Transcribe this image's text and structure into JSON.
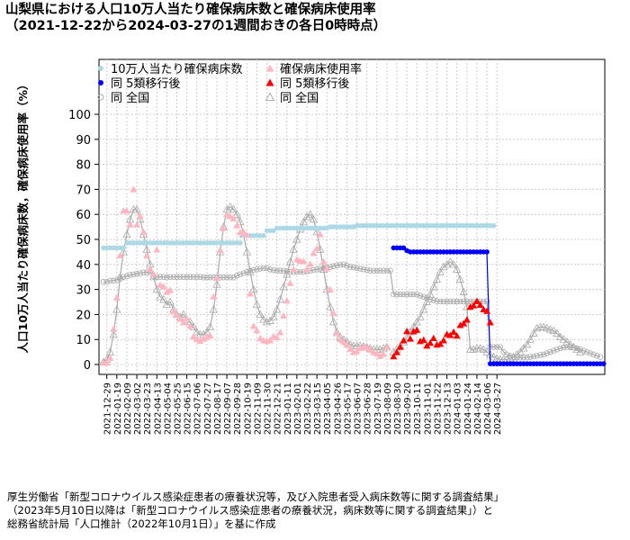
{
  "header": {
    "title": "山梨県における人口10万人当たり確保病床数と確保病床使用率",
    "subtitle": "（2021-12-22から2024-03-27の1週間おきの各日0時時点）"
  },
  "source": {
    "line1": "厚生労働省「新型コロナウイルス感染症患者の療養状況等，及び入院患者受入病床数等に関する調査結果」",
    "line2": "（2023年5月10日以降は「新型コロナウイルス感染症患者の療養状況，病床数等に関する調査結果」）と",
    "line3": "総務省統計局「人口推計（2022年10月1日）」を基に作成"
  },
  "chart_data": {
    "type": "scatter",
    "ylabel": "人口10万人当たり確保病床数，確保病床使用率（%）",
    "ylim": [
      0,
      100
    ],
    "yticks": [
      0,
      10,
      20,
      30,
      40,
      50,
      60,
      70,
      80,
      90,
      100
    ],
    "grid": true,
    "legend_position": "top-left",
    "x_start": "2021-12-22",
    "x_step_days": 7,
    "xtick_labels": [
      "2021-12-29",
      "2022-01-19",
      "2022-02-09",
      "2022-03-02",
      "2022-03-23",
      "2022-04-13",
      "2022-05-04",
      "2022-05-25",
      "2022-06-15",
      "2022-07-06",
      "2022-07-27",
      "2022-08-17",
      "2022-09-07",
      "2022-09-28",
      "2022-10-19",
      "2022-11-09",
      "2022-11-30",
      "2022-12-21",
      "2023-01-11",
      "2023-02-01",
      "2023-02-22",
      "2023-03-15",
      "2023-04-05",
      "2023-04-26",
      "2023-05-17",
      "2023-06-07",
      "2023-06-28",
      "2023-07-19",
      "2023-08-09",
      "2023-08-30",
      "2023-09-20",
      "2023-10-11",
      "2023-11-01",
      "2023-11-22",
      "2023-12-13",
      "2024-01-03",
      "2024-01-24",
      "2024-02-14",
      "2024-03-06",
      "2024-03-27"
    ],
    "legend": {
      "beds": "10万人当たり確保病床数",
      "usage": "確保病床使用率",
      "beds_post": "同 5類移行後",
      "usage_post": "同 5類移行後",
      "beds_national": "同 全国",
      "usage_national": "同 全国"
    },
    "colors": {
      "beds": "#add8e6",
      "usage": "#ffb6c1",
      "beds_post": "#0000ff",
      "usage_post": "#ff0000",
      "national": "#aaaaaa"
    },
    "series": {
      "beds": [
        46.6,
        46.6,
        46.6,
        46.6,
        46.6,
        46.6,
        46.6,
        48.6,
        48.6,
        48.6,
        48.6,
        48.6,
        48.6,
        48.6,
        48.6,
        48.6,
        48.6,
        48.6,
        48.6,
        48.6,
        48.6,
        48.6,
        48.6,
        48.6,
        48.6,
        48.6,
        48.6,
        48.6,
        48.6,
        48.6,
        48.6,
        48.6,
        48.6,
        48.6,
        48.6,
        48.6,
        48.6,
        48.6,
        48.6,
        48.6,
        48.6,
        48.6,
        51.5,
        51.5,
        51.5,
        51.5,
        51.5,
        51.5,
        51.5,
        53.5,
        53.5,
        53.5,
        54.5,
        54.5,
        54.5,
        54.5,
        54.5,
        54.5,
        54.5,
        54.5,
        54.5,
        54.5,
        54.5,
        54.5,
        54.5,
        54.5,
        54.5,
        54.5,
        55.0,
        55.0,
        55.0,
        55.0,
        55.0,
        55.0,
        55.0,
        55.0,
        55.5,
        55.5,
        55.5,
        55.5,
        55.5,
        55.5,
        55.5,
        55.5,
        55.5,
        55.5,
        55.5,
        55.5,
        55.5,
        55.5,
        55.5,
        55.5,
        55.5,
        55.5,
        55.5,
        55.5,
        55.5,
        55.5,
        55.5,
        55.5,
        55.5,
        55.5,
        55.5,
        55.5,
        55.5,
        55.5,
        55.5,
        55.5,
        55.5,
        55.5,
        55.5,
        55.5,
        55.5,
        55.5,
        55.5,
        55.5,
        55.5,
        55.5
      ],
      "usage": [
        0.7,
        0.7,
        2.6,
        14.2,
        26.7,
        43.6,
        61.5,
        61.5,
        55.9,
        70.0,
        55.9,
        59.4,
        53.0,
        43.6,
        38.2,
        36.2,
        45.9,
        31.8,
        31.2,
        29.0,
        29.7,
        21.4,
        19.9,
        18.2,
        16.8,
        18.4,
        15.4,
        11.2,
        10.1,
        9.4,
        10.3,
        11.0,
        11.6,
        27.1,
        34.5,
        45.7,
        54.5,
        60.0,
        59.3,
        58.3,
        55.6,
        52.8,
        53.0,
        51.8,
        28.3,
        15.4,
        13.6,
        10.5,
        9.6,
        9.3,
        9.7,
        11.3,
        10.8,
        12.9,
        19.5,
        25.5,
        32.5,
        38.0,
        42.0,
        41.4,
        41.3,
        38.1,
        40.2,
        44.5,
        46.5,
        52.0,
        41.1,
        38.4,
        30.0,
        20.5,
        12.5,
        10.1,
        9.0,
        7.9,
        6.2,
        4.9,
        5.3,
        6.5,
        7.1,
        6.8,
        5.9,
        4.9,
        4.4,
        3.4,
        4.2,
        6.9,
        null,
        null,
        null,
        null,
        null,
        null,
        null,
        null,
        null,
        null,
        null,
        null,
        null,
        null,
        null,
        null,
        null,
        null,
        null,
        null,
        null,
        null,
        null,
        null,
        null,
        null,
        null,
        null,
        null,
        null,
        null,
        null,
        null,
        null,
        null,
        null,
        null
      ],
      "beds_post": [
        null,
        null,
        null,
        null,
        null,
        null,
        null,
        null,
        null,
        null,
        null,
        null,
        null,
        null,
        null,
        null,
        null,
        null,
        null,
        null,
        null,
        null,
        null,
        null,
        null,
        null,
        null,
        null,
        null,
        null,
        null,
        null,
        null,
        null,
        null,
        null,
        null,
        null,
        null,
        null,
        null,
        null,
        null,
        null,
        null,
        null,
        null,
        null,
        null,
        null,
        null,
        null,
        null,
        null,
        null,
        null,
        null,
        null,
        null,
        null,
        null,
        null,
        null,
        null,
        null,
        null,
        null,
        null,
        null,
        null,
        null,
        null,
        null,
        null,
        null,
        null,
        null,
        null,
        null,
        null,
        null,
        null,
        null,
        null,
        null,
        null,
        null,
        46.6,
        46.6,
        46.6,
        46.6,
        45.5,
        45.0,
        45.0,
        45.0,
        45.0,
        45.0,
        45.0,
        45.0,
        45.0,
        45.0,
        45.0,
        45.0,
        45.0,
        45.0,
        45.0,
        45.0,
        45.0,
        45.0,
        45.0,
        45.0,
        45.0,
        45.0,
        45.0,
        45.0,
        45.0,
        0.3,
        0.3,
        0.3,
        0.3,
        0.3,
        0.3,
        0.3,
        0.3,
        0.3,
        0.3,
        0.3,
        0.3,
        0.3,
        0.3,
        0.3,
        0.3,
        0.3,
        0.3,
        0.3,
        0.3,
        0.3,
        0.3,
        0.3,
        0.3,
        0.3,
        0.3,
        0.3,
        0.3,
        0.3,
        0.3,
        0.3,
        0.3,
        0.3,
        0.3,
        0.3
      ],
      "usage_post": [
        null,
        null,
        null,
        null,
        null,
        null,
        null,
        null,
        null,
        null,
        null,
        null,
        null,
        null,
        null,
        null,
        null,
        null,
        null,
        null,
        null,
        null,
        null,
        null,
        null,
        null,
        null,
        null,
        null,
        null,
        null,
        null,
        null,
        null,
        null,
        null,
        null,
        null,
        null,
        null,
        null,
        null,
        null,
        null,
        null,
        null,
        null,
        null,
        null,
        null,
        null,
        null,
        null,
        null,
        null,
        null,
        null,
        null,
        null,
        null,
        null,
        null,
        null,
        null,
        null,
        null,
        null,
        null,
        null,
        null,
        null,
        null,
        null,
        null,
        null,
        null,
        null,
        null,
        null,
        null,
        null,
        null,
        null,
        null,
        null,
        null,
        null,
        3.2,
        4.9,
        7.0,
        9.6,
        13.3,
        10.3,
        13.2,
        13.8,
        9.3,
        9.8,
        7.5,
        8.6,
        10.5,
        7.9,
        8.2,
        9.6,
        12.1,
        11.7,
        13.0,
        11.5,
        15.7,
        16.4,
        17.9,
        23.0,
        23.6,
        25.3,
        23.8,
        22.0,
        21.4,
        16.8
      ],
      "beds_national": [
        33.0,
        33.0,
        33.5,
        33.5,
        33.8,
        34.3,
        35.0,
        35.3,
        35.8,
        36.0,
        36.3,
        36.5,
        36.8,
        36.8,
        37.0,
        35.3,
        35.0,
        35.0,
        35.0,
        34.8,
        35.0,
        35.0,
        35.0,
        35.0,
        35.0,
        35.0,
        35.0,
        35.0,
        35.0,
        35.0,
        34.8,
        34.8,
        34.8,
        34.8,
        34.8,
        34.8,
        34.8,
        34.8,
        34.8,
        34.8,
        35.5,
        36.0,
        36.5,
        37.0,
        37.5,
        37.8,
        38.0,
        38.3,
        38.5,
        38.5,
        38.0,
        37.7,
        37.5,
        37.5,
        37.5,
        37.3,
        37.0,
        37.0,
        37.0,
        37.0,
        37.0,
        37.2,
        37.5,
        37.8,
        38.0,
        38.3,
        38.5,
        38.8,
        39.0,
        39.3,
        39.6,
        39.8,
        40.0,
        39.5,
        39.0,
        38.8,
        38.5,
        38.3,
        38.0,
        37.8,
        37.5,
        37.5,
        37.5,
        37.5,
        37.5,
        37.5,
        37.5,
        28.0,
        28.0,
        28.0,
        28.0,
        28.0,
        28.0,
        28.0,
        28.0,
        27.5,
        27.0,
        26.5,
        26.0,
        25.7,
        25.3,
        25.2,
        25.2,
        25.2,
        25.2,
        25.2,
        25.2,
        25.2,
        25.2,
        25.2,
        25.2,
        25.2,
        25.2,
        25.2,
        25.2,
        25.2,
        7.0,
        7.0,
        7.0,
        7.0,
        5.0,
        4.0,
        3.5,
        3.0,
        2.8,
        2.8,
        2.8,
        2.8,
        3.0,
        3.2,
        3.5,
        3.8,
        4.0,
        4.5,
        5.0,
        5.5,
        6.0,
        6.5,
        6.8,
        7.0,
        7.0,
        6.8,
        6.5,
        6.0,
        5.5,
        5.0,
        4.5,
        4.0,
        3.5,
        3.0
      ],
      "usage_national": [
        1.0,
        2.0,
        5.0,
        12.0,
        22.0,
        35.0,
        45.0,
        52.0,
        58.0,
        62.0,
        62.0,
        58.0,
        52.0,
        46.0,
        40.0,
        35.0,
        30.0,
        27.0,
        26.0,
        24.0,
        25.0,
        22.0,
        20.0,
        19.0,
        20.0,
        18.0,
        17.0,
        15.0,
        13.0,
        12.0,
        12.0,
        13.0,
        15.0,
        22.0,
        32.0,
        45.0,
        55.0,
        62.0,
        63.0,
        62.0,
        60.0,
        57.0,
        52.0,
        45.0,
        37.0,
        30.0,
        24.0,
        20.0,
        18.0,
        17.0,
        17.5,
        19.0,
        22.0,
        26.0,
        31.0,
        36.0,
        41.0,
        46.0,
        50.0,
        54.0,
        57.0,
        59.0,
        60.0,
        58.0,
        53.0,
        46.0,
        38.0,
        30.0,
        23.0,
        17.0,
        13.0,
        11.0,
        10.0,
        9.0,
        8.0,
        7.5,
        7.5,
        7.5,
        7.2,
        7.0,
        6.5,
        6.0,
        6.0,
        6.0,
        6.5,
        7.0,
        null,
        null,
        null,
        null,
        null,
        null,
        null,
        null,
        null,
        null,
        null,
        null,
        null,
        null,
        null,
        null,
        null,
        null,
        null,
        null,
        null,
        null,
        null,
        null,
        null,
        null,
        null,
        null,
        null,
        null,
        null,
        null,
        null,
        null,
        null,
        null,
        null
      ],
      "usage_national_post": [
        null,
        null,
        null,
        null,
        null,
        null,
        null,
        null,
        null,
        null,
        null,
        null,
        null,
        null,
        null,
        null,
        null,
        null,
        null,
        null,
        null,
        null,
        null,
        null,
        null,
        null,
        null,
        null,
        null,
        null,
        null,
        null,
        null,
        null,
        null,
        null,
        null,
        null,
        null,
        null,
        null,
        null,
        null,
        null,
        null,
        null,
        null,
        null,
        null,
        null,
        null,
        null,
        null,
        null,
        null,
        null,
        null,
        null,
        null,
        null,
        null,
        null,
        null,
        null,
        null,
        null,
        null,
        null,
        null,
        null,
        null,
        null,
        null,
        null,
        null,
        null,
        null,
        null,
        null,
        null,
        null,
        null,
        null,
        null,
        null,
        null,
        null,
        5.0,
        6.0,
        7.5,
        9.0,
        11.0,
        13.0,
        15.0,
        17.0,
        19.0,
        22.0,
        25.0,
        28.0,
        31.0,
        34.0,
        37.0,
        39.0,
        40.0,
        41.0,
        40.0,
        38.0,
        34.0,
        29.0,
        23.0,
        6.0,
        6.0,
        6.5,
        6.5,
        6.0,
        5.0,
        4.0,
        3.0,
        2.5,
        2.0,
        2.0,
        2.0,
        2.5,
        3.0,
        4.0,
        5.0,
        6.5,
        8.0,
        10.0,
        12.5,
        14.5,
        15.0,
        15.0,
        14.5,
        14.0,
        13.5,
        12.5,
        11.0,
        10.0,
        9.0,
        8.0,
        7.0,
        6.0,
        5.0
      ]
    }
  }
}
